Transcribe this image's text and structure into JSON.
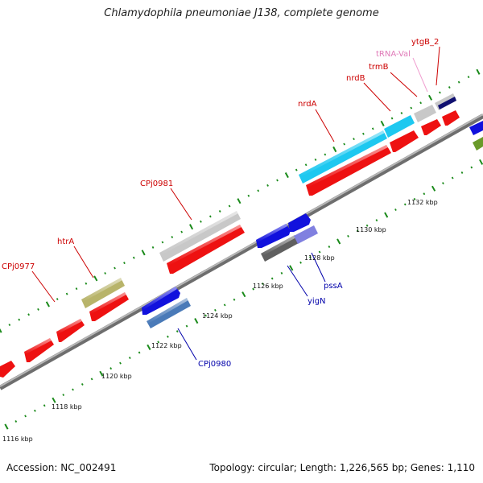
{
  "title": "Chlamydophila pneumoniae J138, complete genome",
  "footer": {
    "accession": "Accession: NC_002491",
    "summary": "Topology: circular; Length: 1,226,565 bp; Genes: 1,110"
  },
  "colors": {
    "backbone": "#8a8a8a",
    "tick_dot": "#1a8a1a",
    "label_forward": "#cc0000",
    "label_reverse": "#0000aa",
    "label_trna": "#e07ab8",
    "gene_red": "#ee1111",
    "gene_grey": "#c8c8c8",
    "gene_cyan": "#1ec8f0",
    "gene_olive": "#b8b46a",
    "gene_blue": "#1111dd",
    "gene_steel": "#4a7ab8",
    "gene_darkgrey": "#606060",
    "gene_lavender": "#8080e0",
    "gene_navy": "#101070",
    "gene_green": "#6a9a2a"
  },
  "scale_labels": [
    "1116 kbp",
    "1118 kbp",
    "1120 kbp",
    "1122 kbp",
    "1124 kbp",
    "1126 kbp",
    "1128 kbp",
    "1130 kbp",
    "1132 kbp"
  ],
  "gene_labels": [
    {
      "name": "CPj0977",
      "color": "label_forward"
    },
    {
      "name": "htrA",
      "color": "label_forward"
    },
    {
      "name": "CPj0981",
      "color": "label_forward"
    },
    {
      "name": "nrdA",
      "color": "label_forward"
    },
    {
      "name": "nrdB",
      "color": "label_forward"
    },
    {
      "name": "trmB",
      "color": "label_forward"
    },
    {
      "name": "tRNA-Val",
      "color": "label_trna"
    },
    {
      "name": "ytgB_2",
      "color": "label_forward"
    },
    {
      "name": "CPj0980",
      "color": "label_reverse"
    },
    {
      "name": "yigN",
      "color": "label_reverse"
    },
    {
      "name": "pssA",
      "color": "label_reverse"
    }
  ]
}
